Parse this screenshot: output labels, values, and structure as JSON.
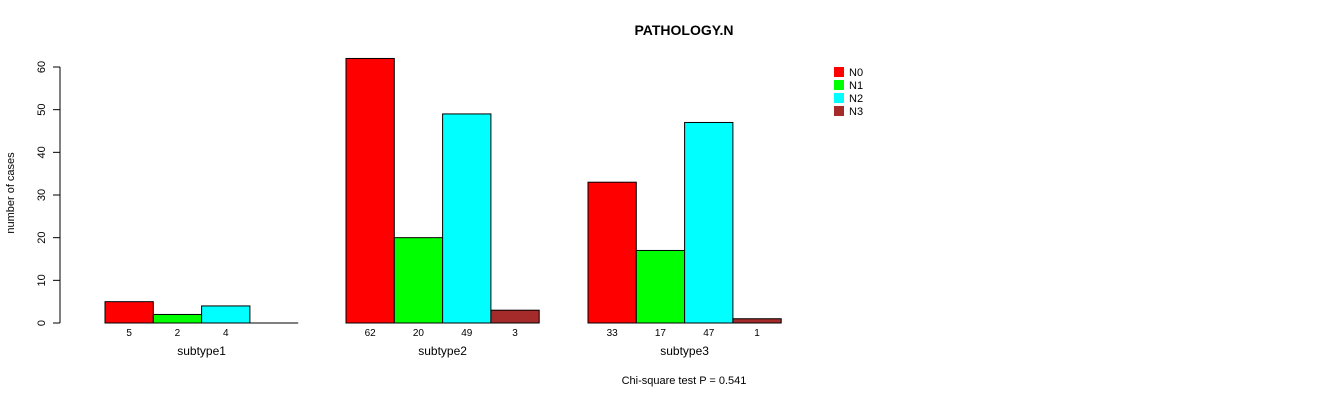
{
  "chart_data": {
    "type": "bar",
    "title": "PATHOLOGY.N",
    "xlabel": "",
    "ylabel": "number of cases",
    "ylim": [
      0,
      60
    ],
    "yticks": [
      0,
      10,
      20,
      30,
      40,
      50,
      60
    ],
    "groups": [
      "subtype1",
      "subtype2",
      "subtype3"
    ],
    "series": [
      {
        "name": "N0",
        "color": "#ff0000",
        "values": [
          5,
          62,
          33
        ],
        "labels": [
          "5",
          "62",
          "33"
        ]
      },
      {
        "name": "N1",
        "color": "#00ff00",
        "values": [
          2,
          20,
          17
        ],
        "labels": [
          "2",
          "20",
          "17"
        ]
      },
      {
        "name": "N2",
        "color": "#00ffff",
        "values": [
          4,
          49,
          47
        ],
        "labels": [
          "4",
          "49",
          "47"
        ]
      },
      {
        "name": "N3",
        "color": "#a52a2a",
        "values": [
          0,
          3,
          1
        ],
        "labels": [
          "",
          "3",
          "1"
        ]
      }
    ],
    "legend_position": "top-right",
    "grid": false,
    "annotation": "Chi-square test P = 0.541"
  }
}
